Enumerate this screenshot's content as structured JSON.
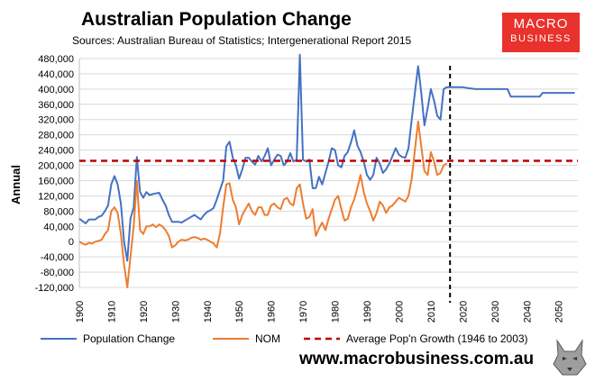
{
  "header": {
    "title": "Australian Population Change",
    "subtitle": "Sources: Australian Bureau of Statistics; Intergenerational Report 2015"
  },
  "logo": {
    "line1": "MACRO",
    "line2": "BUSINESS",
    "color": "#e8322b"
  },
  "footer": {
    "website": "www.macrobusiness.com.au"
  },
  "chart_data": {
    "type": "line",
    "title": "Australian Population Change",
    "subtitle": "Sources: Australian Bureau of Statistics; Intergenerational Report 2015",
    "xlabel": "",
    "ylabel": "Annual",
    "xlim": [
      1900,
      2056
    ],
    "ylim": [
      -120000,
      480000
    ],
    "x_ticks": [
      1900,
      1910,
      1920,
      1930,
      1940,
      1950,
      1960,
      1970,
      1980,
      1990,
      2000,
      2010,
      2020,
      2030,
      2040,
      2050
    ],
    "y_ticks": [
      -120000,
      -80000,
      -40000,
      0,
      40000,
      80000,
      120000,
      160000,
      200000,
      240000,
      280000,
      320000,
      360000,
      400000,
      440000,
      480000
    ],
    "y_tick_labels": [
      "-120,000",
      "-80,000",
      "-40,000",
      "0",
      "40,000",
      "80,000",
      "120,000",
      "160,000",
      "200,000",
      "240,000",
      "280,000",
      "320,000",
      "360,000",
      "400,000",
      "440,000",
      "480,000"
    ],
    "grid": "horizontal",
    "legend": "bottom",
    "series": [
      {
        "name": "Population Change",
        "color": "#4472c4",
        "points": [
          [
            1900,
            60000
          ],
          [
            1902,
            48000
          ],
          [
            1903,
            58000
          ],
          [
            1905,
            58000
          ],
          [
            1906,
            65000
          ],
          [
            1907,
            68000
          ],
          [
            1908,
            80000
          ],
          [
            1909,
            95000
          ],
          [
            1910,
            150000
          ],
          [
            1911,
            172000
          ],
          [
            1912,
            150000
          ],
          [
            1913,
            100000
          ],
          [
            1914,
            0
          ],
          [
            1915,
            -50000
          ],
          [
            1916,
            60000
          ],
          [
            1917,
            90000
          ],
          [
            1918,
            222000
          ],
          [
            1919,
            130000
          ],
          [
            1920,
            115000
          ],
          [
            1921,
            130000
          ],
          [
            1922,
            122000
          ],
          [
            1923,
            125000
          ],
          [
            1925,
            128000
          ],
          [
            1926,
            110000
          ],
          [
            1927,
            95000
          ],
          [
            1928,
            70000
          ],
          [
            1929,
            52000
          ],
          [
            1931,
            52000
          ],
          [
            1932,
            50000
          ],
          [
            1934,
            60000
          ],
          [
            1936,
            70000
          ],
          [
            1937,
            64000
          ],
          [
            1938,
            58000
          ],
          [
            1939,
            70000
          ],
          [
            1940,
            78000
          ],
          [
            1941,
            82000
          ],
          [
            1942,
            88000
          ],
          [
            1943,
            110000
          ],
          [
            1945,
            160000
          ],
          [
            1946,
            250000
          ],
          [
            1947,
            262000
          ],
          [
            1948,
            220000
          ],
          [
            1949,
            200000
          ],
          [
            1950,
            165000
          ],
          [
            1951,
            190000
          ],
          [
            1952,
            220000
          ],
          [
            1953,
            220000
          ],
          [
            1954,
            210000
          ],
          [
            1955,
            202000
          ],
          [
            1956,
            225000
          ],
          [
            1957,
            210000
          ],
          [
            1958,
            225000
          ],
          [
            1959,
            245000
          ],
          [
            1960,
            200000
          ],
          [
            1961,
            215000
          ],
          [
            1962,
            228000
          ],
          [
            1963,
            225000
          ],
          [
            1964,
            200000
          ],
          [
            1965,
            210000
          ],
          [
            1966,
            232000
          ],
          [
            1967,
            210000
          ],
          [
            1968,
            215000
          ],
          [
            1969,
            490000
          ],
          [
            1970,
            215000
          ],
          [
            1971,
            210000
          ],
          [
            1972,
            215000
          ],
          [
            1973,
            140000
          ],
          [
            1974,
            140000
          ],
          [
            1975,
            170000
          ],
          [
            1976,
            150000
          ],
          [
            1977,
            180000
          ],
          [
            1978,
            210000
          ],
          [
            1979,
            245000
          ],
          [
            1980,
            240000
          ],
          [
            1981,
            200000
          ],
          [
            1982,
            195000
          ],
          [
            1983,
            225000
          ],
          [
            1984,
            235000
          ],
          [
            1985,
            260000
          ],
          [
            1986,
            292000
          ],
          [
            1987,
            252000
          ],
          [
            1988,
            235000
          ],
          [
            1989,
            210000
          ],
          [
            1990,
            175000
          ],
          [
            1991,
            162000
          ],
          [
            1992,
            175000
          ],
          [
            1993,
            220000
          ],
          [
            1994,
            205000
          ],
          [
            1995,
            180000
          ],
          [
            1996,
            190000
          ],
          [
            1997,
            205000
          ],
          [
            1998,
            225000
          ],
          [
            1999,
            245000
          ],
          [
            2000,
            228000
          ],
          [
            2001,
            222000
          ],
          [
            2002,
            220000
          ],
          [
            2003,
            245000
          ],
          [
            2004,
            320000
          ],
          [
            2005,
            390000
          ],
          [
            2006,
            460000
          ],
          [
            2007,
            390000
          ],
          [
            2008,
            305000
          ],
          [
            2009,
            350000
          ],
          [
            2010,
            400000
          ],
          [
            2011,
            370000
          ],
          [
            2012,
            330000
          ],
          [
            2013,
            320000
          ],
          [
            2014,
            400000
          ],
          [
            2015,
            405000
          ],
          [
            2020,
            405000
          ],
          [
            2022,
            402000
          ],
          [
            2024,
            400000
          ],
          [
            2034,
            400000
          ],
          [
            2035,
            380000
          ],
          [
            2044,
            380000
          ],
          [
            2045,
            390000
          ],
          [
            2055,
            390000
          ]
        ]
      },
      {
        "name": "NOM",
        "color": "#ed7d31",
        "points": [
          [
            1900,
            0
          ],
          [
            1901,
            -5000
          ],
          [
            1902,
            -8000
          ],
          [
            1903,
            -3000
          ],
          [
            1904,
            -5000
          ],
          [
            1905,
            0
          ],
          [
            1906,
            2000
          ],
          [
            1907,
            5000
          ],
          [
            1908,
            20000
          ],
          [
            1909,
            30000
          ],
          [
            1910,
            80000
          ],
          [
            1911,
            90000
          ],
          [
            1912,
            75000
          ],
          [
            1913,
            20000
          ],
          [
            1914,
            -60000
          ],
          [
            1915,
            -120000
          ],
          [
            1916,
            -40000
          ],
          [
            1917,
            40000
          ],
          [
            1918,
            160000
          ],
          [
            1919,
            30000
          ],
          [
            1920,
            20000
          ],
          [
            1921,
            40000
          ],
          [
            1922,
            40000
          ],
          [
            1923,
            45000
          ],
          [
            1924,
            38000
          ],
          [
            1925,
            45000
          ],
          [
            1926,
            40000
          ],
          [
            1927,
            30000
          ],
          [
            1928,
            15000
          ],
          [
            1929,
            -15000
          ],
          [
            1930,
            -10000
          ],
          [
            1931,
            0
          ],
          [
            1932,
            5000
          ],
          [
            1933,
            3000
          ],
          [
            1934,
            5000
          ],
          [
            1935,
            10000
          ],
          [
            1936,
            12000
          ],
          [
            1937,
            10000
          ],
          [
            1938,
            5000
          ],
          [
            1939,
            8000
          ],
          [
            1940,
            5000
          ],
          [
            1941,
            0
          ],
          [
            1942,
            -5000
          ],
          [
            1943,
            -15000
          ],
          [
            1944,
            20000
          ],
          [
            1945,
            90000
          ],
          [
            1946,
            150000
          ],
          [
            1947,
            153000
          ],
          [
            1948,
            110000
          ],
          [
            1949,
            90000
          ],
          [
            1950,
            45000
          ],
          [
            1951,
            70000
          ],
          [
            1952,
            85000
          ],
          [
            1953,
            100000
          ],
          [
            1954,
            80000
          ],
          [
            1955,
            70000
          ],
          [
            1956,
            90000
          ],
          [
            1957,
            90000
          ],
          [
            1958,
            70000
          ],
          [
            1959,
            70000
          ],
          [
            1960,
            95000
          ],
          [
            1961,
            100000
          ],
          [
            1962,
            90000
          ],
          [
            1963,
            85000
          ],
          [
            1964,
            110000
          ],
          [
            1965,
            115000
          ],
          [
            1966,
            100000
          ],
          [
            1967,
            95000
          ],
          [
            1968,
            140000
          ],
          [
            1969,
            150000
          ],
          [
            1970,
            100000
          ],
          [
            1971,
            60000
          ],
          [
            1972,
            65000
          ],
          [
            1973,
            85000
          ],
          [
            1974,
            15000
          ],
          [
            1975,
            35000
          ],
          [
            1976,
            50000
          ],
          [
            1977,
            30000
          ],
          [
            1978,
            60000
          ],
          [
            1979,
            85000
          ],
          [
            1980,
            110000
          ],
          [
            1981,
            120000
          ],
          [
            1982,
            85000
          ],
          [
            1983,
            55000
          ],
          [
            1984,
            60000
          ],
          [
            1985,
            90000
          ],
          [
            1986,
            110000
          ],
          [
            1987,
            140000
          ],
          [
            1988,
            175000
          ],
          [
            1989,
            130000
          ],
          [
            1990,
            100000
          ],
          [
            1991,
            80000
          ],
          [
            1992,
            55000
          ],
          [
            1993,
            75000
          ],
          [
            1994,
            105000
          ],
          [
            1995,
            95000
          ],
          [
            1996,
            75000
          ],
          [
            1997,
            90000
          ],
          [
            1998,
            95000
          ],
          [
            1999,
            105000
          ],
          [
            2000,
            115000
          ],
          [
            2001,
            110000
          ],
          [
            2002,
            105000
          ],
          [
            2003,
            120000
          ],
          [
            2004,
            165000
          ],
          [
            2005,
            240000
          ],
          [
            2006,
            315000
          ],
          [
            2007,
            250000
          ],
          [
            2008,
            185000
          ],
          [
            2009,
            175000
          ],
          [
            2010,
            235000
          ],
          [
            2011,
            210000
          ],
          [
            2012,
            175000
          ],
          [
            2013,
            180000
          ],
          [
            2014,
            200000
          ],
          [
            2015,
            205000
          ]
        ]
      },
      {
        "name": "Average Pop'n Growth (1946 to 2003)",
        "color": "#c00000",
        "style": "dashed",
        "points": [
          [
            1900,
            212000
          ],
          [
            2056,
            212000
          ]
        ]
      }
    ],
    "annotations": [
      {
        "type": "vertical-dashed-line",
        "x": 2016,
        "color": "#000000"
      }
    ]
  }
}
